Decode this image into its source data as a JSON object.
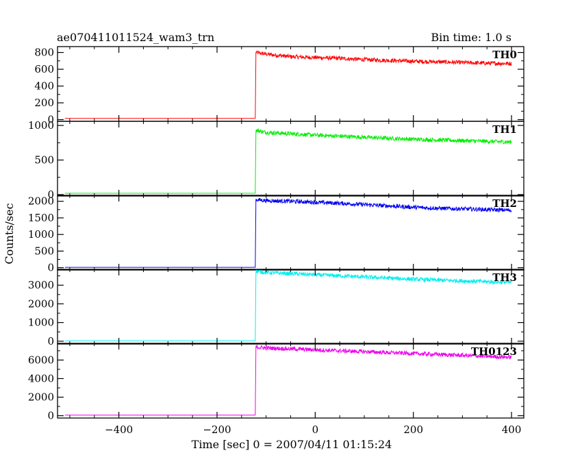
{
  "title": "ae070411011524_wam3_trn",
  "bin_time": "Bin time: 1.0 s",
  "chart_data": {
    "type": "line",
    "xlabel": "Time [sec] 0 = 2007/04/11 01:15:24",
    "ylabel": "Counts/sec",
    "xlim": [
      -525,
      425
    ],
    "x_ticks": [
      -400,
      -200,
      0,
      200,
      400
    ],
    "x_ticks_labels": [
      "−400",
      "−200",
      "0",
      "200",
      "400"
    ],
    "grid": false,
    "panels": [
      {
        "name": "TH0",
        "color": "#ff0000",
        "ylim": [
          -20,
          870
        ],
        "y_ticks": [
          0,
          200,
          400,
          600,
          800
        ],
        "y_tick_labels": [
          "0",
          "200",
          "400",
          "600",
          "800"
        ],
        "x": [
          -510,
          -122,
          -121,
          -100,
          -50,
          0,
          50,
          100,
          150,
          200,
          250,
          300,
          350,
          400
        ],
        "y": [
          15,
          15,
          800,
          780,
          750,
          740,
          730,
          715,
          705,
          695,
          688,
          680,
          672,
          668
        ]
      },
      {
        "name": "TH1",
        "color": "#00ee00",
        "ylim": [
          -20,
          1060
        ],
        "y_ticks": [
          0,
          500,
          1000
        ],
        "y_tick_labels": [
          "0",
          "500",
          "1000"
        ],
        "x": [
          -510,
          -122,
          -121,
          -100,
          -50,
          0,
          50,
          100,
          150,
          200,
          250,
          300,
          350,
          400
        ],
        "y": [
          20,
          20,
          930,
          900,
          880,
          860,
          845,
          830,
          815,
          800,
          790,
          780,
          770,
          760
        ]
      },
      {
        "name": "TH2",
        "color": "#0000ee",
        "ylim": [
          -70,
          2180
        ],
        "y_ticks": [
          0,
          500,
          1000,
          1500,
          2000
        ],
        "y_tick_labels": [
          "0",
          "500",
          "1000",
          "1500",
          "2000"
        ],
        "x": [
          -510,
          -122,
          -121,
          -100,
          -50,
          0,
          50,
          100,
          150,
          200,
          250,
          300,
          350,
          400
        ],
        "y": [
          10,
          10,
          2050,
          2020,
          2000,
          1970,
          1940,
          1900,
          1860,
          1820,
          1790,
          1770,
          1750,
          1730
        ]
      },
      {
        "name": "TH3",
        "color": "#00eeee",
        "ylim": [
          -150,
          3850
        ],
        "y_ticks": [
          0,
          1000,
          2000,
          3000
        ],
        "y_tick_labels": [
          "0",
          "1000",
          "2000",
          "3000"
        ],
        "x": [
          -510,
          -122,
          -121,
          -100,
          -50,
          0,
          50,
          100,
          150,
          200,
          250,
          300,
          350,
          400
        ],
        "y": [
          20,
          20,
          3750,
          3680,
          3620,
          3560,
          3500,
          3440,
          3380,
          3320,
          3270,
          3230,
          3190,
          3150
        ]
      },
      {
        "name": "TH0123",
        "color": "#ee00ee",
        "ylim": [
          -250,
          7800
        ],
        "y_ticks": [
          0,
          2000,
          4000,
          6000
        ],
        "y_tick_labels": [
          "0",
          "2000",
          "4000",
          "6000"
        ],
        "x": [
          -510,
          -122,
          -121,
          -100,
          -50,
          0,
          50,
          100,
          150,
          200,
          250,
          300,
          350,
          400
        ],
        "y": [
          60,
          60,
          7400,
          7300,
          7200,
          7100,
          7000,
          6900,
          6800,
          6700,
          6600,
          6500,
          6400,
          6300
        ]
      }
    ]
  }
}
